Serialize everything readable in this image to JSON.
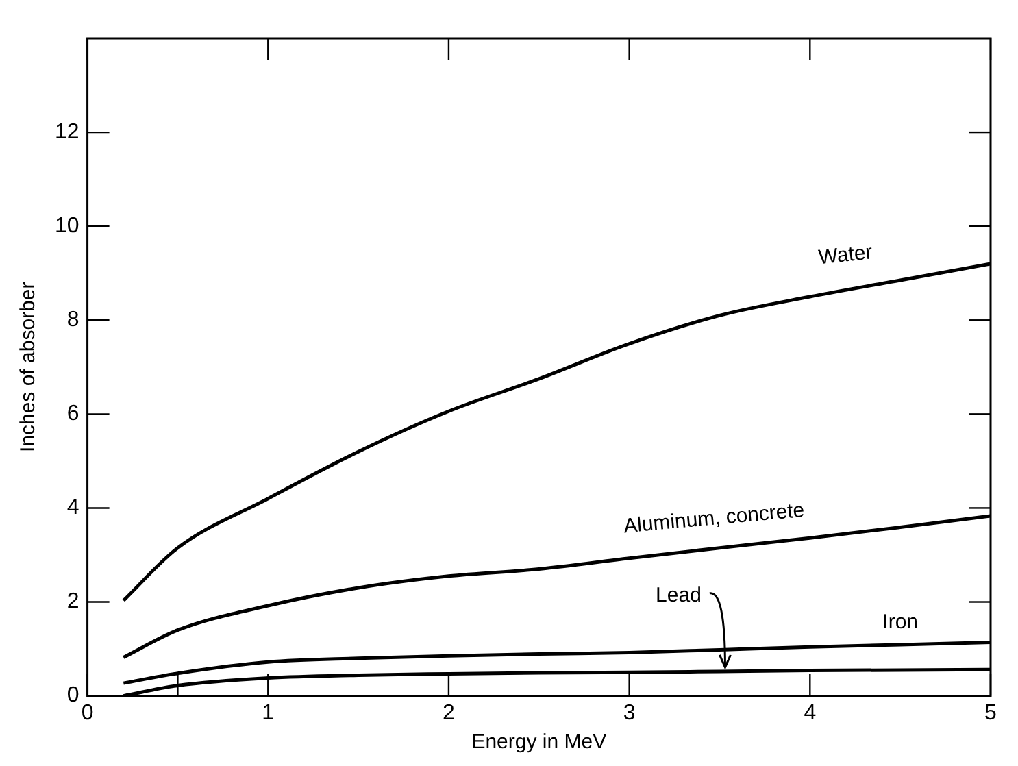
{
  "chart_data": {
    "type": "line",
    "xlabel": "Energy in MeV",
    "ylabel": "Inches of absorber",
    "xlim": [
      0,
      5
    ],
    "ylim": [
      0,
      14
    ],
    "xticks": [
      0,
      {
        "value": 0.5,
        "label": null
      },
      1,
      2,
      3,
      4,
      5
    ],
    "yticks": [
      0,
      2,
      4,
      6,
      8,
      10,
      12
    ],
    "grid": false,
    "legend": false,
    "marker": "none",
    "line_style": "solid",
    "x": [
      0.2,
      0.5,
      1,
      1.5,
      2,
      2.5,
      3,
      3.5,
      4,
      4.5,
      5
    ],
    "series": [
      {
        "name": "Water",
        "color": "#000000",
        "values": [
          2.03,
          3.15,
          4.2,
          5.2,
          6.06,
          6.75,
          7.5,
          8.1,
          8.5,
          8.85,
          9.2
        ]
      },
      {
        "name": "Aluminum, concrete",
        "color": "#000000",
        "values": [
          0.82,
          1.4,
          1.92,
          2.3,
          2.55,
          2.7,
          2.93,
          3.15,
          3.36,
          3.59,
          3.83
        ]
      },
      {
        "name": "Iron",
        "color": "#000000",
        "values": [
          0.27,
          0.48,
          0.72,
          0.8,
          0.85,
          0.89,
          0.92,
          0.98,
          1.04,
          1.09,
          1.14
        ]
      },
      {
        "name": "Lead",
        "color": "#000000",
        "values": [
          0,
          0.22,
          0.38,
          0.44,
          0.47,
          0.49,
          0.5,
          0.52,
          0.54,
          0.55,
          0.56
        ]
      }
    ]
  }
}
